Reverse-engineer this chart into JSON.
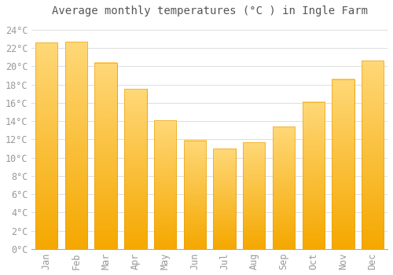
{
  "title": "Average monthly temperatures (°C ) in Ingle Farm",
  "months": [
    "Jan",
    "Feb",
    "Mar",
    "Apr",
    "May",
    "Jun",
    "Jul",
    "Aug",
    "Sep",
    "Oct",
    "Nov",
    "Dec"
  ],
  "values": [
    22.6,
    22.7,
    20.4,
    17.5,
    14.1,
    11.9,
    11.0,
    11.7,
    13.4,
    16.1,
    18.6,
    20.6
  ],
  "bar_color_top": "#FFD070",
  "bar_color_bottom": "#F5A800",
  "bar_edge_color": "#E89A00",
  "background_color": "#ffffff",
  "grid_color": "#dddddd",
  "ylim": [
    0,
    25
  ],
  "yticks": [
    0,
    2,
    4,
    6,
    8,
    10,
    12,
    14,
    16,
    18,
    20,
    22,
    24
  ],
  "title_fontsize": 10,
  "tick_fontsize": 8.5,
  "tick_label_color": "#999999",
  "title_color": "#555555",
  "bar_width": 0.75
}
